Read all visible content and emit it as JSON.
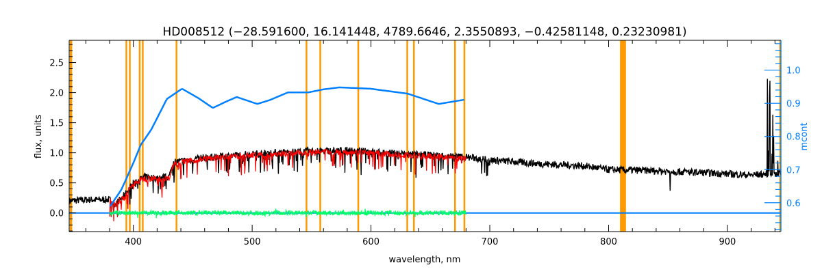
{
  "chart_data": {
    "type": "line",
    "title": "HD008512   (−28.591600, 16.141448, 4789.6646, 2.3550893, −0.42581148, 0.23230981)",
    "xlabel": "wavelength, nm",
    "ylabel": "flux, units",
    "y2label": "mcont",
    "xlim": [
      346,
      945
    ],
    "ylim": [
      -0.31,
      2.87
    ],
    "y2lim": [
      0.513,
      1.09
    ],
    "xticks": [
      400,
      500,
      600,
      700,
      800,
      900
    ],
    "xtick_labels": [
      "400",
      "500",
      "600",
      "700",
      "800",
      "900"
    ],
    "yticks": [
      0.0,
      0.5,
      1.0,
      1.5,
      2.0,
      2.5
    ],
    "ytick_labels": [
      "0.0",
      "0.5",
      "1.0",
      "1.5",
      "2.0",
      "2.5"
    ],
    "y2ticks": [
      0.6,
      0.7,
      0.8,
      0.9,
      1.0
    ],
    "y2tick_labels": [
      "0.6",
      "0.7",
      "0.8",
      "0.9",
      "1.0"
    ],
    "colors": {
      "observed": "#000000",
      "model": "#ff0000",
      "residual": "#00ff66",
      "mcont": "#0080ff",
      "mask": "#ff9900",
      "axis2": "#0080ff"
    },
    "masked_regions_nm": [
      [
        346.5,
        348.5
      ],
      [
        393.4,
        394.0
      ],
      [
        396.3,
        396.9
      ],
      [
        404.6,
        405.8
      ],
      [
        407.2,
        407.8
      ],
      [
        435.6,
        436.8
      ],
      [
        545.0,
        545.6
      ],
      [
        556.6,
        557.2
      ],
      [
        588.6,
        589.6
      ],
      [
        629.8,
        630.4
      ],
      [
        635.4,
        636.0
      ],
      [
        670.0,
        670.6
      ],
      [
        677.9,
        679.1
      ],
      [
        809.6,
        814.6
      ],
      [
        943.6,
        945
      ]
    ],
    "series": [
      {
        "name": "observed flux (continuum envelope)",
        "axis": "left",
        "x": [
          346,
          360,
          380,
          385,
          392,
          400,
          410,
          420,
          430,
          434,
          440,
          460,
          500,
          540,
          580,
          620,
          660,
          680,
          700,
          740,
          780,
          800,
          840,
          880,
          920,
          935,
          945
        ],
        "y": [
          0.2,
          0.22,
          0.22,
          0.15,
          0.28,
          0.5,
          0.6,
          0.58,
          0.6,
          0.85,
          0.86,
          0.92,
          0.98,
          1.02,
          1.04,
          0.99,
          0.95,
          0.93,
          0.88,
          0.82,
          0.78,
          0.72,
          0.7,
          0.67,
          0.63,
          0.65,
          0.66
        ]
      },
      {
        "name": "model",
        "axis": "left",
        "x": [
          380,
          385,
          392,
          400,
          410,
          420,
          430,
          434,
          440,
          460,
          500,
          540,
          580,
          620,
          660,
          680
        ],
        "y": [
          0.2,
          0.14,
          0.26,
          0.48,
          0.58,
          0.56,
          0.58,
          0.82,
          0.84,
          0.9,
          0.96,
          1.0,
          1.02,
          0.97,
          0.93,
          0.91
        ]
      },
      {
        "name": "residual",
        "axis": "left",
        "x": [
          380,
          680
        ],
        "y": [
          0.0,
          0.0
        ]
      },
      {
        "name": "mcont",
        "axis": "right",
        "x": [
          380.4,
          390,
          400,
          406.3,
          415,
          428.2,
          441,
          455,
          466.9,
          478,
          487,
          504.3,
          515,
          530.2,
          547.5,
          560,
          573.5,
          599.4,
          631,
          657,
          678.9
        ],
        "y": [
          0.589,
          0.64,
          0.72,
          0.775,
          0.82,
          0.913,
          0.944,
          0.915,
          0.886,
          0.905,
          0.919,
          0.898,
          0.91,
          0.933,
          0.933,
          0.942,
          0.948,
          0.944,
          0.929,
          0.898,
          0.911
        ]
      },
      {
        "name": "zero line",
        "axis": "left",
        "x": [
          346,
          945
        ],
        "y": [
          0,
          0
        ]
      }
    ]
  }
}
